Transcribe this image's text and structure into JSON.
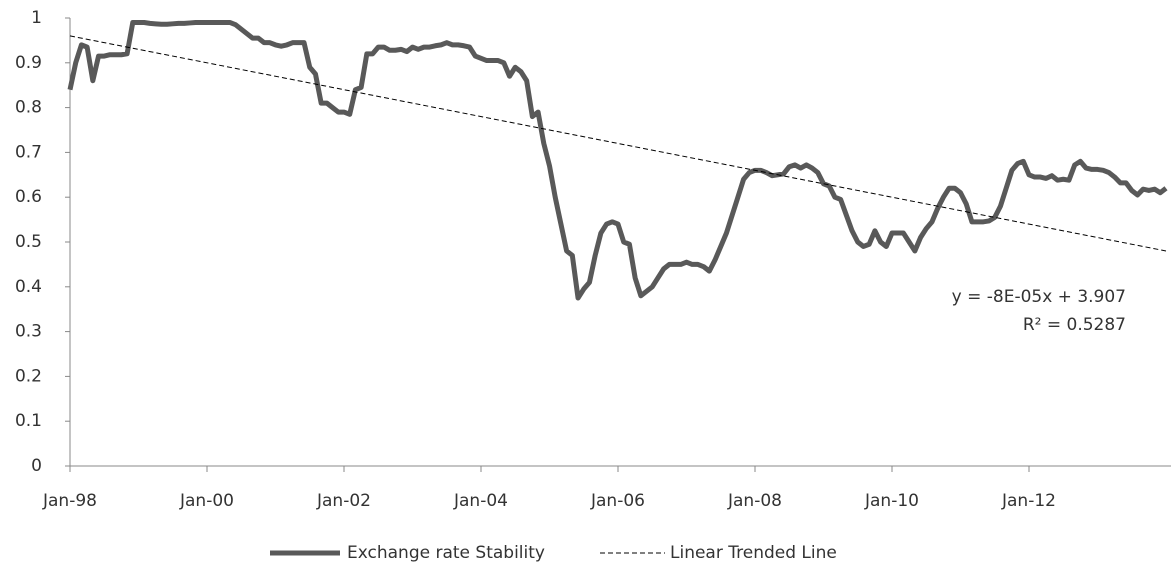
{
  "chart_data": {
    "type": "line",
    "x": [
      "1998-01",
      "1998-02",
      "1998-03",
      "1998-04",
      "1998-05",
      "1998-06",
      "1998-07",
      "1998-08",
      "1998-09",
      "1998-10",
      "1998-11",
      "1998-12",
      "1999-01",
      "1999-02",
      "1999-03",
      "1999-04",
      "1999-05",
      "1999-06",
      "1999-07",
      "1999-08",
      "1999-09",
      "1999-10",
      "1999-11",
      "1999-12",
      "2000-01",
      "2000-02",
      "2000-03",
      "2000-04",
      "2000-05",
      "2000-06",
      "2000-07",
      "2000-08",
      "2000-09",
      "2000-10",
      "2000-11",
      "2000-12",
      "2001-01",
      "2001-02",
      "2001-03",
      "2001-04",
      "2001-05",
      "2001-06",
      "2001-07",
      "2001-08",
      "2001-09",
      "2001-10",
      "2001-11",
      "2001-12",
      "2002-01",
      "2002-02",
      "2002-03",
      "2002-04",
      "2002-05",
      "2002-06",
      "2002-07",
      "2002-08",
      "2002-09",
      "2002-10",
      "2002-11",
      "2002-12",
      "2003-01",
      "2003-02",
      "2003-03",
      "2003-04",
      "2003-05",
      "2003-06",
      "2003-07",
      "2003-08",
      "2003-09",
      "2003-10",
      "2003-11",
      "2003-12",
      "2004-01",
      "2004-02",
      "2004-03",
      "2004-04",
      "2004-05",
      "2004-06",
      "2004-07",
      "2004-08",
      "2004-09",
      "2004-10",
      "2004-11",
      "2004-12",
      "2005-01",
      "2005-02",
      "2005-03",
      "2005-04",
      "2005-05",
      "2005-06",
      "2005-07",
      "2005-08",
      "2005-09",
      "2005-10",
      "2005-11",
      "2005-12",
      "2006-01",
      "2006-02",
      "2006-03",
      "2006-04",
      "2006-05",
      "2006-06",
      "2006-07",
      "2006-08",
      "2006-09",
      "2006-10",
      "2006-11",
      "2006-12",
      "2007-01",
      "2007-02",
      "2007-03",
      "2007-04",
      "2007-05",
      "2007-06",
      "2007-07",
      "2007-08",
      "2007-09",
      "2007-10",
      "2007-11",
      "2007-12",
      "2008-01",
      "2008-02",
      "2008-03",
      "2008-04",
      "2008-05",
      "2008-06",
      "2008-07",
      "2008-08",
      "2008-09",
      "2008-10",
      "2008-11",
      "2008-12",
      "2009-01",
      "2009-02",
      "2009-03",
      "2009-04",
      "2009-05",
      "2009-06",
      "2009-07",
      "2009-08",
      "2009-09",
      "2009-10",
      "2009-11",
      "2009-12",
      "2010-01",
      "2010-02",
      "2010-03",
      "2010-04",
      "2010-05",
      "2010-06",
      "2010-07",
      "2010-08",
      "2010-09",
      "2010-10",
      "2010-11",
      "2010-12",
      "2011-01",
      "2011-02",
      "2011-03",
      "2011-04",
      "2011-05",
      "2011-06",
      "2011-07",
      "2011-08",
      "2011-09",
      "2011-10",
      "2011-11",
      "2011-12",
      "2012-01",
      "2012-02",
      "2012-03",
      "2012-04",
      "2012-05",
      "2012-06",
      "2012-07",
      "2012-08",
      "2012-09",
      "2012-10",
      "2012-11",
      "2012-12",
      "2013-01",
      "2013-02",
      "2013-03",
      "2013-04",
      "2013-05",
      "2013-06",
      "2013-07",
      "2013-08",
      "2013-09",
      "2013-10",
      "2013-11",
      "2013-12",
      "2014-01"
    ],
    "series": [
      {
        "name": "Exchange rate Stability",
        "color": "#595959",
        "width": 5,
        "dashed": false,
        "values": [
          0.84,
          0.9,
          0.94,
          0.935,
          0.86,
          0.915,
          0.915,
          0.918,
          0.918,
          0.918,
          0.92,
          0.99,
          0.99,
          0.99,
          0.988,
          0.987,
          0.986,
          0.986,
          0.987,
          0.988,
          0.988,
          0.989,
          0.99,
          0.99,
          0.99,
          0.99,
          0.99,
          0.99,
          0.99,
          0.985,
          0.975,
          0.965,
          0.955,
          0.955,
          0.945,
          0.945,
          0.94,
          0.937,
          0.94,
          0.945,
          0.945,
          0.945,
          0.89,
          0.875,
          0.81,
          0.81,
          0.8,
          0.79,
          0.79,
          0.785,
          0.84,
          0.845,
          0.92,
          0.92,
          0.935,
          0.935,
          0.928,
          0.928,
          0.93,
          0.925,
          0.935,
          0.93,
          0.935,
          0.935,
          0.938,
          0.94,
          0.945,
          0.94,
          0.94,
          0.938,
          0.935,
          0.915,
          0.91,
          0.905,
          0.905,
          0.905,
          0.9,
          0.87,
          0.89,
          0.88,
          0.86,
          0.78,
          0.79,
          0.72,
          0.67,
          0.6,
          0.54,
          0.48,
          0.47,
          0.375,
          0.395,
          0.41,
          0.47,
          0.52,
          0.54,
          0.545,
          0.54,
          0.5,
          0.495,
          0.42,
          0.38,
          0.39,
          0.4,
          0.42,
          0.44,
          0.45,
          0.45,
          0.45,
          0.455,
          0.45,
          0.45,
          0.445,
          0.435,
          0.46,
          0.49,
          0.52,
          0.56,
          0.6,
          0.64,
          0.655,
          0.66,
          0.66,
          0.655,
          0.648,
          0.65,
          0.652,
          0.668,
          0.672,
          0.665,
          0.672,
          0.665,
          0.655,
          0.63,
          0.625,
          0.6,
          0.595,
          0.56,
          0.525,
          0.5,
          0.49,
          0.495,
          0.525,
          0.5,
          0.49,
          0.52,
          0.52,
          0.52,
          0.5,
          0.48,
          0.51,
          0.53,
          0.545,
          0.575,
          0.6,
          0.62,
          0.62,
          0.61,
          0.585,
          0.545,
          0.545,
          0.545,
          0.547,
          0.555,
          0.58,
          0.62,
          0.66,
          0.675,
          0.68,
          0.65,
          0.645,
          0.645,
          0.642,
          0.648,
          0.638,
          0.64,
          0.638,
          0.672,
          0.68,
          0.665,
          0.662,
          0.662,
          0.66,
          0.655,
          0.645,
          0.632,
          0.632,
          0.615,
          0.605,
          0.618,
          0.615,
          0.618,
          0.61,
          0.62
        ]
      },
      {
        "name": "Linear Trended Line",
        "color": "#000000",
        "width": 1,
        "dashed": true,
        "x": [
          "1998-01",
          "2014-01"
        ],
        "values": [
          0.96,
          0.48
        ]
      }
    ],
    "annotations": [
      "y = -8E-05x + 3.907",
      "R² = 0.5287"
    ],
    "xlim": [
      "1998-01",
      "2014-01"
    ],
    "xticks": [
      {
        "value": "1998-01",
        "label": "Jan-98"
      },
      {
        "value": "2000-01",
        "label": "Jan-00"
      },
      {
        "value": "2002-01",
        "label": "Jan-02"
      },
      {
        "value": "2004-01",
        "label": "Jan-04"
      },
      {
        "value": "2006-01",
        "label": "Jan-06"
      },
      {
        "value": "2008-01",
        "label": "Jan-08"
      },
      {
        "value": "2010-01",
        "label": "Jan-10"
      },
      {
        "value": "2012-01",
        "label": "Jan-12"
      }
    ],
    "ylim": [
      0,
      1
    ],
    "yticks": [
      0,
      0.1,
      0.2,
      0.3,
      0.4,
      0.5,
      0.6,
      0.7,
      0.8,
      0.9,
      1
    ],
    "grid": false,
    "legend": "bottom"
  }
}
